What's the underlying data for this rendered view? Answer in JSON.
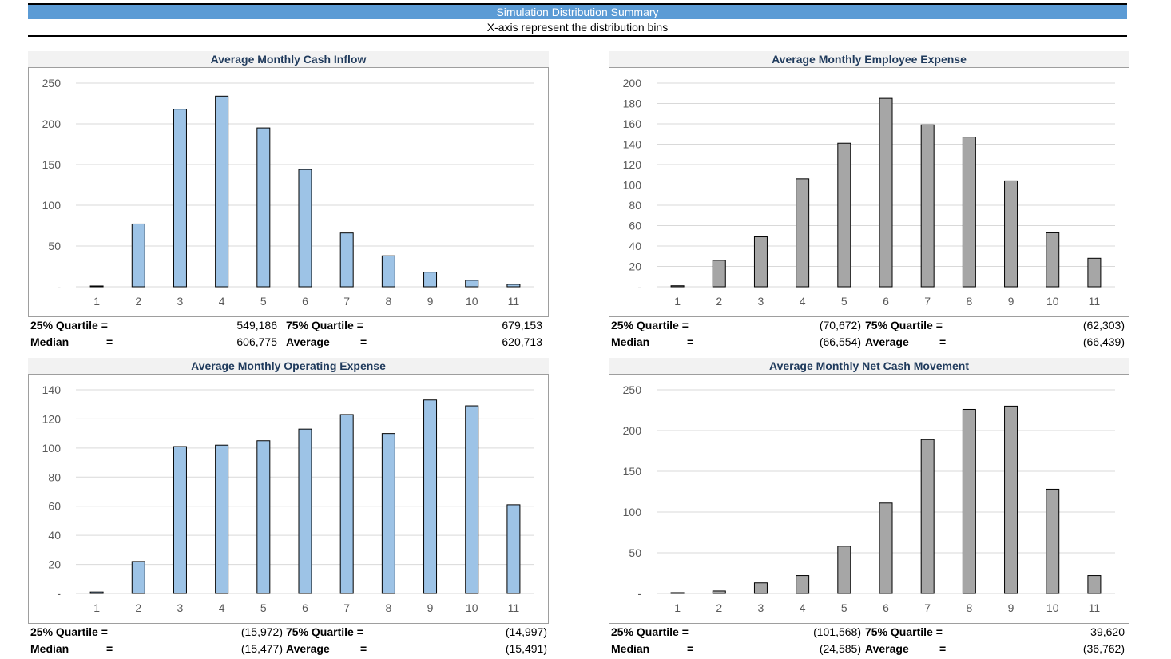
{
  "header": {
    "title": "Simulation Distribution Summary",
    "subtitle": "X-axis represent the distribution bins"
  },
  "colors": {
    "banner": "#5b9bd5",
    "blue_bar": "#9dc3e6",
    "gray_bar": "#a6a6a6",
    "bar_outline": "#000000"
  },
  "labels": {
    "q25": "25% Quartile =",
    "q75": "75% Quartile =",
    "median": "Median",
    "average": "Average",
    "eq": "="
  },
  "panels": [
    {
      "id": "cash-inflow",
      "title": "Average Monthly Cash Inflow",
      "stats": {
        "q25": "549,186",
        "q75": "679,153",
        "median": "606,775",
        "average": "620,713"
      }
    },
    {
      "id": "employee-expense",
      "title": "Average Monthly Employee Expense",
      "stats": {
        "q25": "(70,672)",
        "q75": "(62,303)",
        "median": "(66,554)",
        "average": "(66,439)"
      }
    },
    {
      "id": "operating-expense",
      "title": "Average Monthly Operating Expense",
      "stats": {
        "q25": "(15,972)",
        "q75": "(14,997)",
        "median": "(15,477)",
        "average": "(15,491)"
      }
    },
    {
      "id": "net-cash-movement",
      "title": "Average Monthly Net Cash Movement",
      "stats": {
        "q25": "(101,568)",
        "q75": "39,620",
        "median": "(24,585)",
        "average": "(36,762)"
      }
    }
  ],
  "chart_data": [
    {
      "type": "bar",
      "title": "Average Monthly Cash Inflow",
      "categories": [
        "1",
        "2",
        "3",
        "4",
        "5",
        "6",
        "7",
        "8",
        "9",
        "10",
        "11"
      ],
      "values": [
        1,
        77,
        218,
        234,
        195,
        144,
        66,
        38,
        18,
        8,
        3
      ],
      "ylim": [
        0,
        250
      ],
      "yticks": [
        "-",
        "50",
        "100",
        "150",
        "200",
        "250"
      ],
      "color": "blue",
      "grid": true
    },
    {
      "type": "bar",
      "title": "Average Monthly Employee Expense",
      "categories": [
        "1",
        "2",
        "3",
        "4",
        "5",
        "6",
        "7",
        "8",
        "9",
        "10",
        "11"
      ],
      "values": [
        1,
        26,
        49,
        106,
        141,
        185,
        159,
        147,
        104,
        53,
        28
      ],
      "ylim": [
        0,
        200
      ],
      "yticks": [
        "-",
        "20",
        "40",
        "60",
        "80",
        "100",
        "120",
        "140",
        "160",
        "180",
        "200"
      ],
      "color": "gray",
      "grid": true
    },
    {
      "type": "bar",
      "title": "Average Monthly Operating Expense",
      "categories": [
        "1",
        "2",
        "3",
        "4",
        "5",
        "6",
        "7",
        "8",
        "9",
        "10",
        "11"
      ],
      "values": [
        1,
        22,
        101,
        102,
        105,
        113,
        123,
        110,
        133,
        129,
        61
      ],
      "ylim": [
        0,
        140
      ],
      "yticks": [
        "-",
        "20",
        "40",
        "60",
        "80",
        "100",
        "120",
        "140"
      ],
      "color": "blue",
      "grid": true
    },
    {
      "type": "bar",
      "title": "Average Monthly Net Cash Movement",
      "categories": [
        "1",
        "2",
        "3",
        "4",
        "5",
        "6",
        "7",
        "8",
        "9",
        "10",
        "11"
      ],
      "values": [
        1,
        3,
        13,
        22,
        58,
        111,
        189,
        226,
        230,
        128,
        22
      ],
      "ylim": [
        0,
        250
      ],
      "yticks": [
        "-",
        "50",
        "100",
        "150",
        "200",
        "250"
      ],
      "color": "gray",
      "grid": true
    }
  ]
}
